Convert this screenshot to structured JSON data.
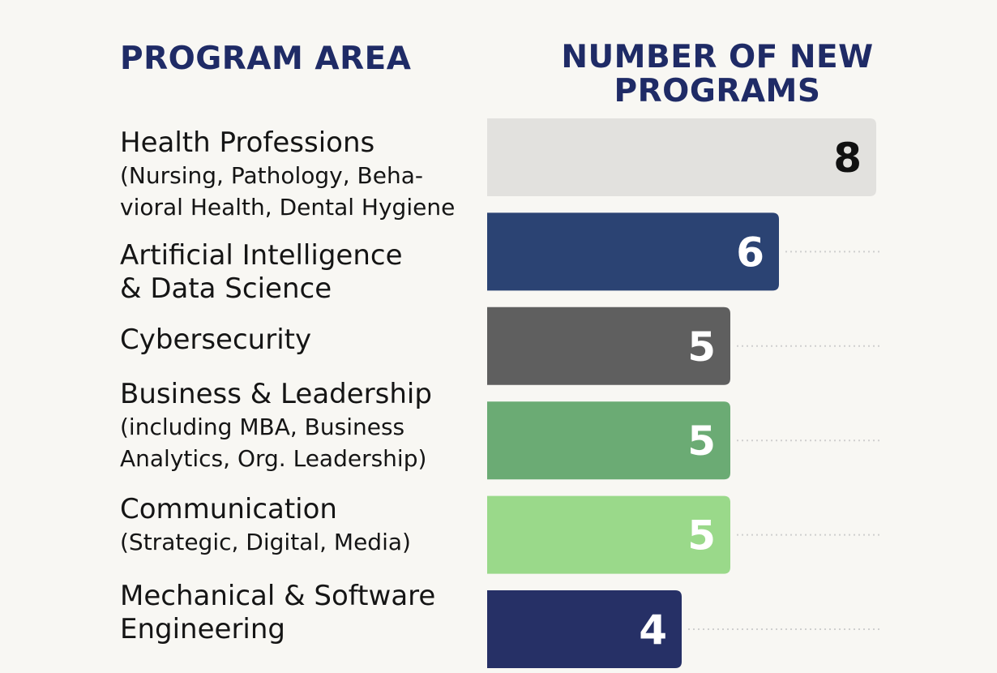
{
  "headers": {
    "program_area": "PROGRAM AREA",
    "number_of_new_programs": "NUMBER OF NEW PROGRAMS"
  },
  "rows": [
    {
      "title": "Health Professions",
      "subtitle": "(Nursing, Pathology, Beha-\nvioral Health, Dental Hygiene"
    },
    {
      "title": "Artificial Intelligence\n& Data Science",
      "subtitle": ""
    },
    {
      "title": "Cybersecurity",
      "subtitle": ""
    },
    {
      "title": "Business & Leadership",
      "subtitle": "(including MBA, Business\nAnalytics, Org. Leadership)"
    },
    {
      "title": "Communication",
      "subtitle": "(Strategic, Digital, Media)"
    },
    {
      "title": "Mechanical & Software\nEngineering",
      "subtitle": ""
    }
  ],
  "colors": {
    "background": "#f8f7f3",
    "header": "#1f2b66",
    "dotted_line": "#cfcfcf"
  },
  "chart_data": {
    "type": "bar",
    "orientation": "horizontal",
    "title": "",
    "xlabel": "NUMBER OF NEW PROGRAMS",
    "ylabel": "PROGRAM AREA",
    "categories": [
      "Health Professions (Nursing, Pathology, Behavioral Health, Dental Hygiene",
      "Artificial Intelligence & Data Science",
      "Cybersecurity",
      "Business & Leadership (including MBA, Business Analytics, Org. Leadership)",
      "Communication (Strategic, Digital, Media)",
      "Mechanical & Software Engineering"
    ],
    "values": [
      8,
      6,
      5,
      5,
      5,
      4
    ],
    "data_labels": [
      "8",
      "6",
      "5",
      "5",
      "5",
      "4"
    ],
    "bar_colors": [
      "#e2e1de",
      "#2b4373",
      "#5f5f5f",
      "#6bab74",
      "#9ad98a",
      "#263066"
    ],
    "label_colors": [
      "#111111",
      "#ffffff",
      "#ffffff",
      "#ffffff",
      "#ffffff",
      "#ffffff"
    ],
    "grid": false,
    "legend": "none"
  }
}
